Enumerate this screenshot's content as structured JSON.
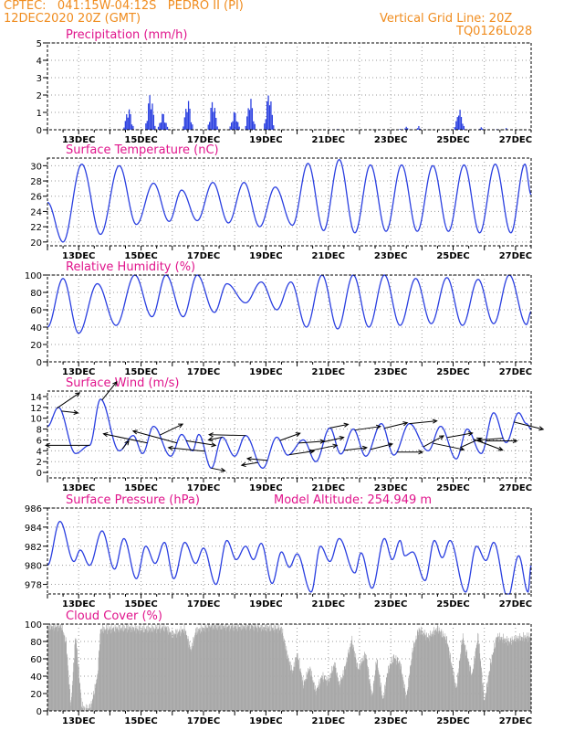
{
  "header": {
    "line1": "CPTEC:   041:15W-04:12S   PEDRO II (PI)",
    "line2": "12DEC2020 20Z (GMT)",
    "grid_note": "Vertical Grid Line: 20Z",
    "code": "TQ0126L028"
  },
  "colors": {
    "header": "#f08c1e",
    "panel_title": "#e0158c",
    "series": "#2a3fe0",
    "cloud": "#a8a8a8",
    "arrow": "#000000",
    "grid": "#9a9a9a"
  },
  "date_ticks": [
    "13DEC",
    "15DEC",
    "17DEC",
    "19DEC",
    "21DEC",
    "23DEC",
    "25DEC",
    "27DEC"
  ],
  "charts": [
    {
      "id": "precip",
      "type": "bar",
      "title": "Precipitation (mm/h)",
      "ylim": [
        0,
        5
      ],
      "yticks": [
        0,
        1,
        2,
        3,
        4,
        5
      ],
      "grid": true,
      "clusters": [
        {
          "day": 14.6,
          "peak": 1.3
        },
        {
          "day": 15.3,
          "peak": 2.2
        },
        {
          "day": 15.7,
          "peak": 1.0
        },
        {
          "day": 16.5,
          "peak": 1.8
        },
        {
          "day": 17.3,
          "peak": 1.8
        },
        {
          "day": 18.0,
          "peak": 1.1
        },
        {
          "day": 18.5,
          "peak": 1.9
        },
        {
          "day": 19.1,
          "peak": 2.3
        },
        {
          "day": 21.3,
          "peak": 0.05
        },
        {
          "day": 23.3,
          "peak": 0.05
        },
        {
          "day": 23.5,
          "peak": 0.25
        },
        {
          "day": 23.9,
          "peak": 0.25
        },
        {
          "day": 25.2,
          "peak": 1.2
        },
        {
          "day": 25.9,
          "peak": 0.2
        },
        {
          "day": 26.4,
          "peak": 0.05
        },
        {
          "day": 26.7,
          "peak": 0.1
        }
      ]
    },
    {
      "id": "temp",
      "type": "line",
      "title": "Surface Temperature (nC)",
      "ylim": [
        19.5,
        31
      ],
      "yticks": [
        20,
        22,
        24,
        26,
        28,
        30
      ],
      "grid": true,
      "extrema": [
        [
          12.0,
          25.2
        ],
        [
          12.5,
          20.0
        ],
        [
          13.1,
          30.2
        ],
        [
          13.7,
          21.0
        ],
        [
          14.3,
          30.0
        ],
        [
          14.85,
          22.3
        ],
        [
          15.4,
          27.7
        ],
        [
          15.9,
          22.7
        ],
        [
          16.3,
          26.8
        ],
        [
          16.8,
          22.8
        ],
        [
          17.3,
          27.8
        ],
        [
          17.8,
          22.5
        ],
        [
          18.3,
          27.8
        ],
        [
          18.8,
          22.0
        ],
        [
          19.3,
          27.2
        ],
        [
          19.85,
          22.2
        ],
        [
          20.35,
          30.3
        ],
        [
          20.85,
          21.5
        ],
        [
          21.35,
          30.8
        ],
        [
          21.85,
          21.2
        ],
        [
          22.35,
          30.1
        ],
        [
          22.85,
          21.4
        ],
        [
          23.35,
          30.1
        ],
        [
          23.85,
          21.4
        ],
        [
          24.35,
          30.0
        ],
        [
          24.85,
          21.4
        ],
        [
          25.35,
          30.1
        ],
        [
          25.85,
          21.2
        ],
        [
          26.35,
          30.2
        ],
        [
          26.85,
          21.2
        ],
        [
          27.3,
          30.2
        ],
        [
          27.5,
          26.2
        ]
      ]
    },
    {
      "id": "rh",
      "type": "line",
      "title": "Relative Humidity (%)",
      "ylim": [
        0,
        100
      ],
      "yticks": [
        0,
        20,
        40,
        60,
        80,
        100
      ],
      "grid": true,
      "extrema": [
        [
          12.0,
          40.0
        ],
        [
          12.5,
          96.0
        ],
        [
          13.0,
          33.0
        ],
        [
          13.6,
          90.0
        ],
        [
          14.2,
          42.0
        ],
        [
          14.8,
          100.0
        ],
        [
          15.35,
          52.0
        ],
        [
          15.8,
          100.0
        ],
        [
          16.35,
          52.0
        ],
        [
          16.8,
          100.0
        ],
        [
          17.35,
          57.0
        ],
        [
          17.75,
          90.0
        ],
        [
          18.35,
          68.0
        ],
        [
          18.85,
          92.0
        ],
        [
          19.35,
          60.0
        ],
        [
          19.8,
          92.0
        ],
        [
          20.3,
          40.0
        ],
        [
          20.8,
          100.0
        ],
        [
          21.3,
          38.0
        ],
        [
          21.8,
          100.0
        ],
        [
          22.3,
          40.0
        ],
        [
          22.8,
          100.0
        ],
        [
          23.3,
          42.0
        ],
        [
          23.8,
          96.0
        ],
        [
          24.3,
          44.0
        ],
        [
          24.8,
          97.0
        ],
        [
          25.3,
          42.0
        ],
        [
          25.8,
          95.0
        ],
        [
          26.3,
          44.0
        ],
        [
          26.8,
          100.0
        ],
        [
          27.35,
          43.0
        ],
        [
          27.5,
          58.0
        ]
      ]
    },
    {
      "id": "wind",
      "type": "line",
      "title": "Surface Wind (m/s)",
      "ylim": [
        -1,
        15
      ],
      "yticks": [
        0,
        2,
        4,
        6,
        8,
        10,
        12,
        14
      ],
      "grid": true,
      "extrema": [
        [
          12.0,
          8.5
        ],
        [
          12.35,
          12.0
        ],
        [
          12.9,
          3.5
        ],
        [
          13.35,
          5.0
        ],
        [
          13.7,
          13.5
        ],
        [
          14.3,
          4.0
        ],
        [
          14.75,
          6.8
        ],
        [
          15.05,
          3.5
        ],
        [
          15.4,
          8.5
        ],
        [
          15.95,
          3.0
        ],
        [
          16.3,
          7.0
        ],
        [
          16.65,
          4.0
        ],
        [
          16.85,
          7.0
        ],
        [
          17.25,
          0.8
        ],
        [
          17.6,
          6.5
        ],
        [
          18.0,
          3.0
        ],
        [
          18.35,
          6.8
        ],
        [
          18.9,
          0.8
        ],
        [
          19.35,
          6.5
        ],
        [
          19.7,
          3.2
        ],
        [
          20.2,
          6.0
        ],
        [
          20.6,
          2.0
        ],
        [
          21.05,
          8.2
        ],
        [
          21.4,
          3.4
        ],
        [
          21.8,
          8.0
        ],
        [
          22.2,
          3.0
        ],
        [
          22.7,
          9.0
        ],
        [
          23.1,
          3.2
        ],
        [
          23.6,
          9.0
        ],
        [
          24.2,
          4.0
        ],
        [
          24.6,
          8.5
        ],
        [
          25.1,
          2.5
        ],
        [
          25.45,
          8.0
        ],
        [
          25.9,
          3.5
        ],
        [
          26.3,
          11.0
        ],
        [
          26.7,
          5.5
        ],
        [
          27.1,
          11.0
        ],
        [
          27.35,
          9.0
        ],
        [
          27.5,
          8.0
        ]
      ],
      "arrows": [
        {
          "day": 12.3,
          "dx": 25,
          "dy": -17
        },
        {
          "day": 12.45,
          "dx": 18,
          "dy": 2
        },
        {
          "day": 13.35,
          "dx": -48,
          "dy": 0
        },
        {
          "day": 13.75,
          "dx": 16,
          "dy": -20
        },
        {
          "day": 14.4,
          "dx": 7,
          "dy": -9
        },
        {
          "day": 15.2,
          "dx": -48,
          "dy": -10
        },
        {
          "day": 15.6,
          "dx": 25,
          "dy": -12
        },
        {
          "day": 16.15,
          "dx": -48,
          "dy": -13
        },
        {
          "day": 16.45,
          "dx": 32,
          "dy": 5
        },
        {
          "day": 17.05,
          "dx": -40,
          "dy": -4
        },
        {
          "day": 17.25,
          "dx": 15,
          "dy": 3
        },
        {
          "day": 17.6,
          "dx": -15,
          "dy": 3
        },
        {
          "day": 18.35,
          "dx": -40,
          "dy": -1
        },
        {
          "day": 18.75,
          "dx": -18,
          "dy": 3
        },
        {
          "day": 19.05,
          "dx": -22,
          "dy": -2
        },
        {
          "day": 19.45,
          "dx": 22,
          "dy": -8
        },
        {
          "day": 19.75,
          "dx": 27,
          "dy": -4
        },
        {
          "day": 20.05,
          "dx": 28,
          "dy": -2
        },
        {
          "day": 20.4,
          "dx": 30,
          "dy": -6
        },
        {
          "day": 20.85,
          "dx": 22,
          "dy": -5
        },
        {
          "day": 21.05,
          "dx": 20,
          "dy": -4
        },
        {
          "day": 21.5,
          "dx": 25,
          "dy": -3
        },
        {
          "day": 21.85,
          "dx": 28,
          "dy": -4
        },
        {
          "day": 22.35,
          "dx": 24,
          "dy": -6
        },
        {
          "day": 22.8,
          "dx": 25,
          "dy": -6
        },
        {
          "day": 23.2,
          "dx": 28,
          "dy": 0
        },
        {
          "day": 23.6,
          "dx": 30,
          "dy": -3
        },
        {
          "day": 24.05,
          "dx": 22,
          "dy": -12
        },
        {
          "day": 24.35,
          "dx": 34,
          "dy": 7
        },
        {
          "day": 24.8,
          "dx": 28,
          "dy": -5
        },
        {
          "day": 25.25,
          "dx": 22,
          "dy": -10
        },
        {
          "day": 25.65,
          "dx": 32,
          "dy": 12
        },
        {
          "day": 26.05,
          "dx": 34,
          "dy": 0
        },
        {
          "day": 26.6,
          "dx": -27,
          "dy": 2
        },
        {
          "day": 26.95,
          "dx": 32,
          "dy": 8
        }
      ]
    },
    {
      "id": "pressure",
      "type": "line",
      "title": "Surface Pressure (hPa)",
      "subtitle": "Model Altitude: 254.949  m",
      "ylim": [
        977,
        986
      ],
      "yticks": [
        978,
        980,
        982,
        984,
        986
      ],
      "grid": true,
      "extrema": [
        [
          12.0,
          980.0
        ],
        [
          12.4,
          984.6
        ],
        [
          12.85,
          980.4
        ],
        [
          13.05,
          981.6
        ],
        [
          13.35,
          980.0
        ],
        [
          13.75,
          983.6
        ],
        [
          14.15,
          979.6
        ],
        [
          14.45,
          982.8
        ],
        [
          14.85,
          978.6
        ],
        [
          15.15,
          982.0
        ],
        [
          15.45,
          980.2
        ],
        [
          15.75,
          982.4
        ],
        [
          16.05,
          978.6
        ],
        [
          16.4,
          982.4
        ],
        [
          16.75,
          980.2
        ],
        [
          17.0,
          981.8
        ],
        [
          17.4,
          978.0
        ],
        [
          17.75,
          982.6
        ],
        [
          18.05,
          980.6
        ],
        [
          18.35,
          982.0
        ],
        [
          18.6,
          980.6
        ],
        [
          18.85,
          982.3
        ],
        [
          19.2,
          978.1
        ],
        [
          19.5,
          981.4
        ],
        [
          19.75,
          979.8
        ],
        [
          20.0,
          981.2
        ],
        [
          20.45,
          977.2
        ],
        [
          20.75,
          982.0
        ],
        [
          21.05,
          980.4
        ],
        [
          21.35,
          982.8
        ],
        [
          21.85,
          979.2
        ],
        [
          22.05,
          981.3
        ],
        [
          22.4,
          977.6
        ],
        [
          22.8,
          982.8
        ],
        [
          23.05,
          980.6
        ],
        [
          23.3,
          982.6
        ],
        [
          23.45,
          981.0
        ],
        [
          23.7,
          981.4
        ],
        [
          24.1,
          978.4
        ],
        [
          24.4,
          982.6
        ],
        [
          24.65,
          980.8
        ],
        [
          24.9,
          982.6
        ],
        [
          25.4,
          977.2
        ],
        [
          25.75,
          982.0
        ],
        [
          26.05,
          980.5
        ],
        [
          26.3,
          982.4
        ],
        [
          26.75,
          976.6
        ],
        [
          27.1,
          981.0
        ],
        [
          27.4,
          977.2
        ],
        [
          27.5,
          980.0
        ]
      ]
    },
    {
      "id": "cloud",
      "type": "area",
      "title": "Cloud Cover (%)",
      "ylim": [
        0,
        100
      ],
      "yticks": [
        0,
        20,
        40,
        60,
        80,
        100
      ],
      "grid": true,
      "profile": [
        [
          12.0,
          97
        ],
        [
          12.45,
          98
        ],
        [
          12.6,
          78
        ],
        [
          12.75,
          5
        ],
        [
          12.9,
          88
        ],
        [
          13.1,
          5
        ],
        [
          13.25,
          2
        ],
        [
          13.4,
          6
        ],
        [
          13.6,
          40
        ],
        [
          13.7,
          94
        ],
        [
          14.2,
          95
        ],
        [
          14.6,
          96
        ],
        [
          15.0,
          94
        ],
        [
          15.4,
          95
        ],
        [
          15.8,
          96
        ],
        [
          16.0,
          88
        ],
        [
          16.4,
          94
        ],
        [
          16.6,
          70
        ],
        [
          16.75,
          92
        ],
        [
          17.2,
          98
        ],
        [
          17.5,
          98
        ],
        [
          18.0,
          97
        ],
        [
          18.5,
          98
        ],
        [
          19.0,
          96
        ],
        [
          19.5,
          95
        ],
        [
          19.7,
          62
        ],
        [
          19.85,
          45
        ],
        [
          20.0,
          66
        ],
        [
          20.2,
          30
        ],
        [
          20.4,
          50
        ],
        [
          20.6,
          22
        ],
        [
          20.8,
          40
        ],
        [
          21.0,
          34
        ],
        [
          21.2,
          55
        ],
        [
          21.35,
          30
        ],
        [
          21.5,
          45
        ],
        [
          21.75,
          82
        ],
        [
          21.95,
          48
        ],
        [
          22.2,
          66
        ],
        [
          22.4,
          16
        ],
        [
          22.55,
          60
        ],
        [
          22.75,
          12
        ],
        [
          22.9,
          46
        ],
        [
          23.1,
          62
        ],
        [
          23.3,
          55
        ],
        [
          23.5,
          15
        ],
        [
          23.7,
          70
        ],
        [
          23.9,
          94
        ],
        [
          24.2,
          85
        ],
        [
          24.5,
          95
        ],
        [
          24.8,
          82
        ],
        [
          25.1,
          25
        ],
        [
          25.3,
          86
        ],
        [
          25.6,
          40
        ],
        [
          25.8,
          88
        ],
        [
          26.0,
          10
        ],
        [
          26.2,
          55
        ],
        [
          26.4,
          86
        ],
        [
          26.8,
          80
        ],
        [
          27.1,
          84
        ],
        [
          27.5,
          86
        ]
      ]
    }
  ]
}
